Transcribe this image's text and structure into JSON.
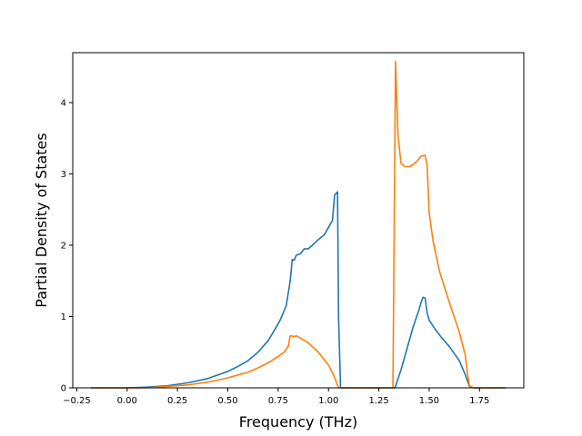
{
  "chart_data": {
    "type": "line",
    "xlabel": "Frequency (THz)",
    "ylabel": "Partial Density of States",
    "xlim": [
      -0.27,
      1.97
    ],
    "ylim": [
      0,
      4.7
    ],
    "grid": false,
    "xticks": [
      {
        "value": -0.25,
        "label": "−0.25"
      },
      {
        "value": 0.0,
        "label": "0.00"
      },
      {
        "value": 0.25,
        "label": "0.25"
      },
      {
        "value": 0.5,
        "label": "0.50"
      },
      {
        "value": 0.75,
        "label": "0.75"
      },
      {
        "value": 1.0,
        "label": "1.00"
      },
      {
        "value": 1.25,
        "label": "1.25"
      },
      {
        "value": 1.5,
        "label": "1.50"
      },
      {
        "value": 1.75,
        "label": "1.75"
      }
    ],
    "yticks": [
      {
        "value": 0,
        "label": "0"
      },
      {
        "value": 1,
        "label": "1"
      },
      {
        "value": 2,
        "label": "2"
      },
      {
        "value": 3,
        "label": "3"
      },
      {
        "value": 4,
        "label": "4"
      }
    ],
    "series": [
      {
        "color": "#1f77b4",
        "points": [
          [
            -0.18,
            0.0
          ],
          [
            0.0,
            0.0
          ],
          [
            0.1,
            0.01
          ],
          [
            0.2,
            0.03
          ],
          [
            0.3,
            0.07
          ],
          [
            0.4,
            0.13
          ],
          [
            0.5,
            0.23
          ],
          [
            0.55,
            0.3
          ],
          [
            0.6,
            0.38
          ],
          [
            0.65,
            0.5
          ],
          [
            0.7,
            0.66
          ],
          [
            0.73,
            0.8
          ],
          [
            0.76,
            0.95
          ],
          [
            0.79,
            1.15
          ],
          [
            0.81,
            1.5
          ],
          [
            0.82,
            1.8
          ],
          [
            0.83,
            1.79
          ],
          [
            0.84,
            1.86
          ],
          [
            0.86,
            1.88
          ],
          [
            0.88,
            1.95
          ],
          [
            0.9,
            1.95
          ],
          [
            0.92,
            2.0
          ],
          [
            0.95,
            2.08
          ],
          [
            0.98,
            2.15
          ],
          [
            1.0,
            2.25
          ],
          [
            1.02,
            2.35
          ],
          [
            1.03,
            2.7
          ],
          [
            1.045,
            2.75
          ],
          [
            1.05,
            1.0
          ],
          [
            1.06,
            0.0
          ],
          [
            1.1,
            0.0
          ],
          [
            1.2,
            0.0
          ],
          [
            1.3,
            0.0
          ],
          [
            1.33,
            0.0
          ],
          [
            1.36,
            0.25
          ],
          [
            1.39,
            0.55
          ],
          [
            1.42,
            0.85
          ],
          [
            1.45,
            1.1
          ],
          [
            1.46,
            1.2
          ],
          [
            1.47,
            1.27
          ],
          [
            1.48,
            1.26
          ],
          [
            1.49,
            1.05
          ],
          [
            1.5,
            0.95
          ],
          [
            1.53,
            0.82
          ],
          [
            1.56,
            0.71
          ],
          [
            1.6,
            0.58
          ],
          [
            1.65,
            0.38
          ],
          [
            1.68,
            0.18
          ],
          [
            1.7,
            0.02
          ],
          [
            1.72,
            0.0
          ],
          [
            1.88,
            0.0
          ]
        ]
      },
      {
        "color": "#ff7f0e",
        "points": [
          [
            -0.18,
            0.0
          ],
          [
            0.0,
            0.0
          ],
          [
            0.1,
            0.0
          ],
          [
            0.2,
            0.02
          ],
          [
            0.3,
            0.04
          ],
          [
            0.4,
            0.08
          ],
          [
            0.5,
            0.14
          ],
          [
            0.55,
            0.18
          ],
          [
            0.6,
            0.22
          ],
          [
            0.65,
            0.28
          ],
          [
            0.7,
            0.35
          ],
          [
            0.75,
            0.44
          ],
          [
            0.78,
            0.5
          ],
          [
            0.8,
            0.58
          ],
          [
            0.81,
            0.73
          ],
          [
            0.83,
            0.72
          ],
          [
            0.84,
            0.73
          ],
          [
            0.86,
            0.7
          ],
          [
            0.9,
            0.63
          ],
          [
            0.95,
            0.5
          ],
          [
            1.0,
            0.32
          ],
          [
            1.03,
            0.15
          ],
          [
            1.05,
            0.0
          ],
          [
            1.1,
            0.0
          ],
          [
            1.2,
            0.0
          ],
          [
            1.32,
            0.0
          ],
          [
            1.333,
            4.58
          ],
          [
            1.345,
            3.55
          ],
          [
            1.36,
            3.15
          ],
          [
            1.38,
            3.1
          ],
          [
            1.4,
            3.1
          ],
          [
            1.42,
            3.13
          ],
          [
            1.44,
            3.18
          ],
          [
            1.46,
            3.25
          ],
          [
            1.48,
            3.26
          ],
          [
            1.49,
            3.12
          ],
          [
            1.5,
            2.45
          ],
          [
            1.52,
            2.05
          ],
          [
            1.55,
            1.65
          ],
          [
            1.6,
            1.2
          ],
          [
            1.65,
            0.78
          ],
          [
            1.68,
            0.45
          ],
          [
            1.69,
            0.2
          ],
          [
            1.7,
            0.03
          ],
          [
            1.72,
            0.0
          ],
          [
            1.88,
            0.0
          ]
        ]
      }
    ]
  }
}
